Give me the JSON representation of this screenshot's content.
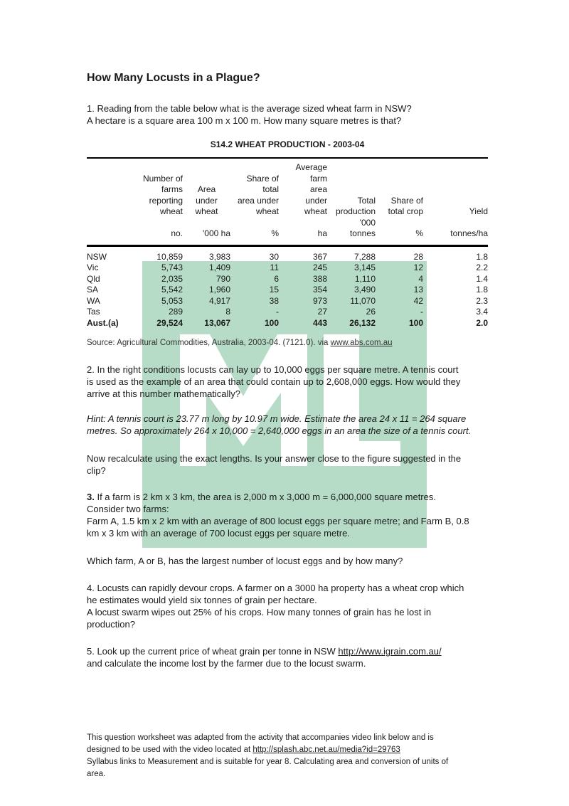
{
  "title": "How Many Locusts in a Plague?",
  "q1": [
    "1. Reading from the table below what is the average sized wheat farm in NSW?",
    "A hectare is a square area 100 m x 100 m. How many square metres is that?"
  ],
  "table": {
    "title": "S14.2 WHEAT PRODUCTION - 2003-04",
    "headers": [
      "",
      "Number of\nfarms\nreporting\nwheat",
      "Area\nunder\nwheat",
      "Share of\ntotal\narea under\nwheat",
      "Average\nfarm\narea\nunder\nwheat",
      "Total\nproduction",
      "Share of\ntotal crop",
      "Yield"
    ],
    "units": [
      "",
      "no.",
      "'000 ha",
      "%",
      "ha",
      "'000\ntonnes",
      "%",
      "tonnes/ha"
    ],
    "rows": [
      [
        "NSW",
        "10,859",
        "3,983",
        "30",
        "367",
        "7,288",
        "28",
        "1.8"
      ],
      [
        "Vic",
        "5,743",
        "1,409",
        "11",
        "245",
        "3,145",
        "12",
        "2.2"
      ],
      [
        "Qld",
        "2,035",
        "790",
        "6",
        "388",
        "1,110",
        "4",
        "1.4"
      ],
      [
        "SA",
        "5,542",
        "1,960",
        "15",
        "354",
        "3,490",
        "13",
        "1.8"
      ],
      [
        "WA",
        "5,053",
        "4,917",
        "38",
        "973",
        "11,070",
        "42",
        "2.3"
      ],
      [
        "Tas",
        "289",
        "8",
        "-",
        "27",
        "26",
        "-",
        "3.4"
      ],
      [
        "Aust.(a)",
        "29,524",
        "13,067",
        "100",
        "443",
        "26,132",
        "100",
        "2.0"
      ]
    ],
    "source_text": "Source: Agricultural Commodities, Australia, 2003-04. (7121.0). via ",
    "source_link": "www.abs.com.au"
  },
  "q2": [
    "2. In the right conditions locusts can lay up to 10,000 eggs per square metre. A tennis court",
    "is used as the example of an area that could contain up to 2,608,000 eggs. How would they",
    "arrive at this number mathematically?"
  ],
  "hint": [
    "Hint: A tennis court is 23.77 m long by 10.97 m wide. Estimate the area 24 x 11 = 264 square",
    "metres. So approximately 264 x 10,000 = 2,640,000 eggs in an area the size of a tennis court."
  ],
  "recalc": [
    "Now recalculate using the exact lengths. Is your answer close to the figure suggested in the",
    "clip?"
  ],
  "q3": {
    "num": "3.",
    "lines": [
      " If a farm is 2 km x 3 km, the area is 2,000 m x 3,000 m = 6,000,000 square metres.",
      "Consider two farms:",
      "Farm A, 1.5 km x 2 km with an average of 800 locust eggs per square metre; and Farm B, 0.8",
      "km x 3 km with an average of 700 locust eggs per square metre."
    ]
  },
  "which": "Which farm, A or B, has the largest number of locust eggs and by how many?",
  "q4": [
    "4. Locusts can rapidly devour crops. A farmer on a 3000 ha property has a wheat crop which",
    "he estimates would yield six tonnes of grain per hectare.",
    "A locust swarm wipes out 25% of his crops. How many tonnes of grain has he lost in",
    "production?"
  ],
  "q5": {
    "text1": "5. Look up the current price of wheat grain per tonne in NSW ",
    "link": "http://www.igrain.com.au/",
    "line2": "and calculate the income lost by the farmer due to the locust swarm."
  },
  "footer": {
    "line1": "This question worksheet was adapted from the activity that accompanies video link below and is",
    "line2_text": "designed to be used with the video located at ",
    "line2_link": "http://splash.abc.net.au/media?id=29763",
    "line3": "Syllabus links to Measurement and is suitable for year 8. Calculating area and conversion of units of",
    "line4": "area."
  },
  "watermark": {
    "text": "ML",
    "color": "#b6dcc8"
  }
}
